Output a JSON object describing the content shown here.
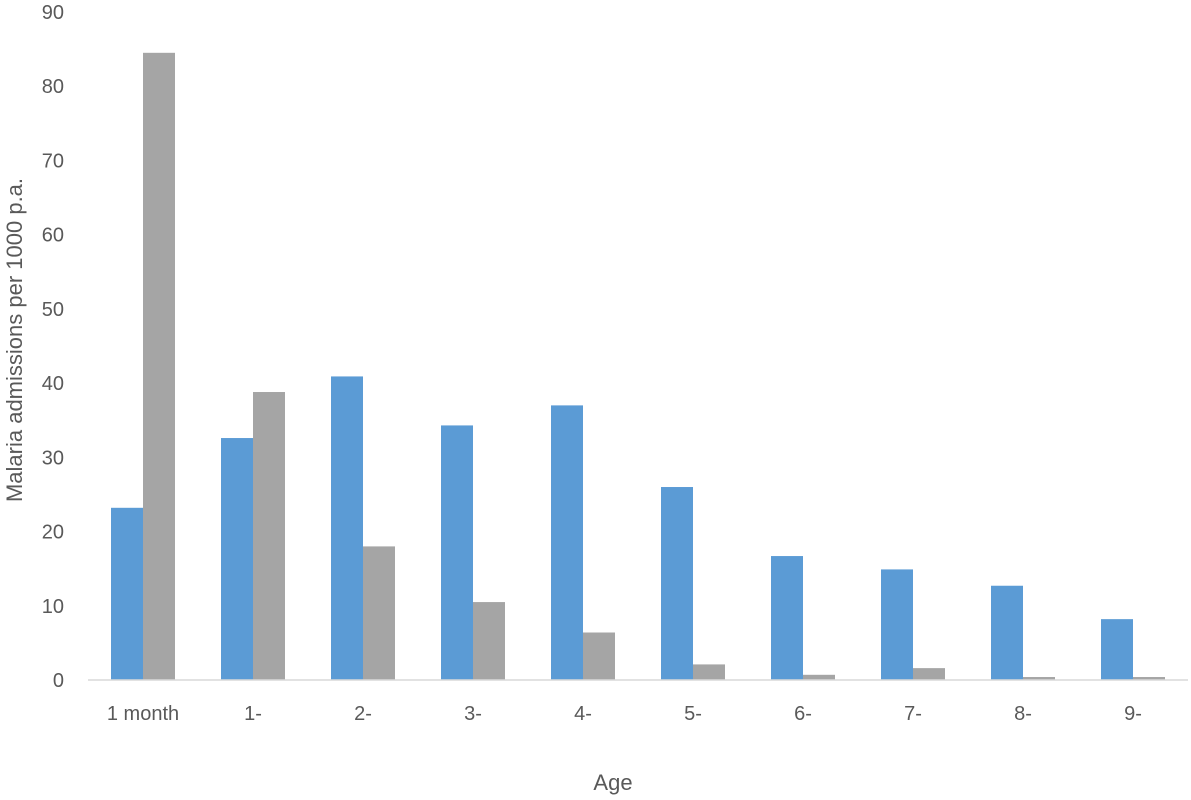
{
  "chart_data": {
    "type": "bar",
    "title": "",
    "xlabel": "Age",
    "ylabel": "Malaria admissions per 1000 p.a.",
    "ylim": [
      0,
      90
    ],
    "yticks": [
      0,
      10,
      20,
      30,
      40,
      50,
      60,
      70,
      80,
      90
    ],
    "grid": false,
    "legend": "none",
    "categories": [
      "1 month",
      "1-",
      "2-",
      "3-",
      "4-",
      "5-",
      "6-",
      "7-",
      "8-",
      "9-"
    ],
    "series": [
      {
        "color": "#5b9bd5",
        "values": [
          23.2,
          32.6,
          40.9,
          34.3,
          37.0,
          26.0,
          16.7,
          14.9,
          12.7,
          8.2
        ]
      },
      {
        "color": "#a5a5a5",
        "values": [
          84.5,
          38.8,
          18.0,
          10.5,
          6.4,
          2.1,
          0.7,
          1.6,
          0.4,
          0.4
        ]
      }
    ],
    "axis_color": "#d9d9d9"
  }
}
